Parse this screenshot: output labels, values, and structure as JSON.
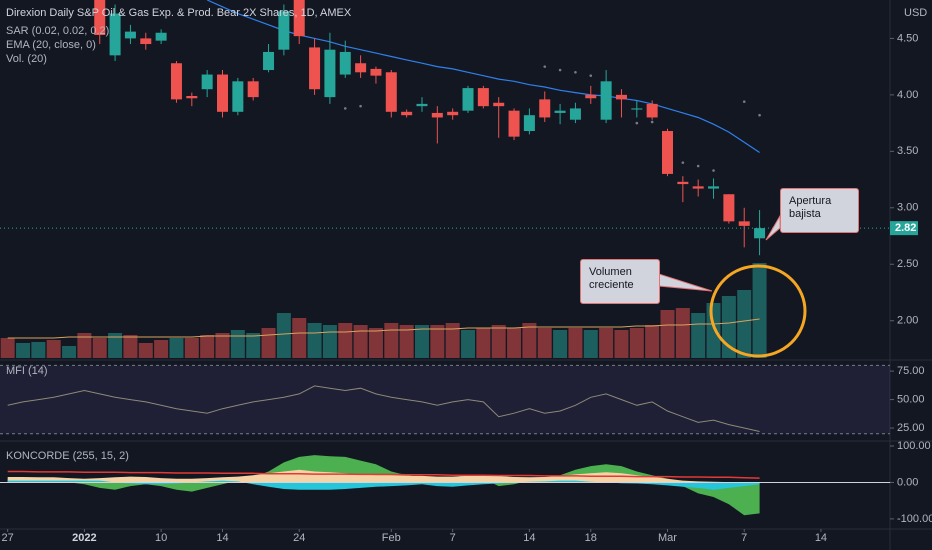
{
  "chart_data": [
    {
      "type": "candlestick",
      "title": "Direxion Daily S&P Oil & Gas Exp. & Prod. Bear 2X Shares, 1D, AMEX",
      "indicators": [
        "SAR (0.02, 0.02, 0.2)",
        "EMA (20, close, 0)",
        "Vol. (20)"
      ],
      "currency": "USD",
      "last_price": 2.82,
      "up_color": "#26a69a",
      "down_color": "#ef5350",
      "xlim": [
        -0.5,
        57.5
      ],
      "xticks": [
        {
          "value": 0,
          "label": "27"
        },
        {
          "value": 5,
          "label": "2022"
        },
        {
          "value": 10,
          "label": "10"
        },
        {
          "value": 14,
          "label": "14"
        },
        {
          "value": 19,
          "label": "24"
        },
        {
          "value": 25,
          "label": "Feb"
        },
        {
          "value": 29,
          "label": "7"
        },
        {
          "value": 34,
          "label": "14"
        },
        {
          "value": 38,
          "label": "18"
        },
        {
          "value": 43,
          "label": "Mar"
        },
        {
          "value": 48,
          "label": "7"
        },
        {
          "value": 53,
          "label": "14"
        }
      ],
      "ylim": [
        1.67,
        4.84
      ],
      "yticks": [
        {
          "value": 2,
          "label": "2.00"
        },
        {
          "value": 2.5,
          "label": "2.50"
        },
        {
          "value": 3,
          "label": "3.00"
        },
        {
          "value": 3.5,
          "label": "3.50"
        },
        {
          "value": 4,
          "label": "4.00"
        },
        {
          "value": 4.5,
          "label": "4.50"
        }
      ],
      "open": [
        null,
        null,
        null,
        null,
        null,
        null,
        4.84,
        4.35,
        4.5,
        4.5,
        4.48,
        4.28,
        3.99,
        4.05,
        4.18,
        3.85,
        4.12,
        4.22,
        4.4,
        4.84,
        4.42,
        3.98,
        4.18,
        4.28,
        4.23,
        4.2,
        3.85,
        3.9,
        3.84,
        3.85,
        3.86,
        4.06,
        3.93,
        3.86,
        3.68,
        3.96,
        3.84,
        3.78,
        4.0,
        3.78,
        4.0,
        3.87,
        3.92,
        3.68,
        3.23,
        3.19,
        3.17,
        3.12,
        2.88,
        2.73
      ],
      "high": [
        null,
        null,
        null,
        null,
        null,
        null,
        4.9,
        4.8,
        4.62,
        4.55,
        4.58,
        4.3,
        4.02,
        4.22,
        4.22,
        4.15,
        4.15,
        4.45,
        4.8,
        4.95,
        4.5,
        4.55,
        4.48,
        4.35,
        4.25,
        4.22,
        3.87,
        3.98,
        3.9,
        3.88,
        4.08,
        4.08,
        3.98,
        3.88,
        3.88,
        4.03,
        3.92,
        3.93,
        4.08,
        4.22,
        4.05,
        3.95,
        3.95,
        3.7,
        3.28,
        3.25,
        3.26,
        3.12,
        3.0,
        2.98
      ],
      "low": [
        null,
        null,
        null,
        null,
        null,
        null,
        4.45,
        4.3,
        4.45,
        4.4,
        4.45,
        3.93,
        3.9,
        3.98,
        3.8,
        3.82,
        3.95,
        4.2,
        4.35,
        4.45,
        4.0,
        3.92,
        4.15,
        4.15,
        4.1,
        3.8,
        3.8,
        3.85,
        3.57,
        3.78,
        3.84,
        3.88,
        3.62,
        3.6,
        3.65,
        3.76,
        3.74,
        3.75,
        3.92,
        3.75,
        3.8,
        3.8,
        3.78,
        3.28,
        3.05,
        3.1,
        3.08,
        2.86,
        2.65,
        2.58
      ],
      "close": [
        null,
        null,
        null,
        null,
        null,
        null,
        4.53,
        4.72,
        4.56,
        4.45,
        4.55,
        3.96,
        3.97,
        4.18,
        3.85,
        4.12,
        3.98,
        4.38,
        4.74,
        4.52,
        4.05,
        4.4,
        4.38,
        4.2,
        4.17,
        3.85,
        3.82,
        3.92,
        3.8,
        3.82,
        4.06,
        3.9,
        3.9,
        3.63,
        3.82,
        3.8,
        3.86,
        3.88,
        3.97,
        4.12,
        3.96,
        3.88,
        3.8,
        3.3,
        3.21,
        3.17,
        3.19,
        2.88,
        2.84,
        2.82
      ],
      "ema": {
        "color": "#2f80ed",
        "values": [
          null,
          null,
          null,
          null,
          null,
          null,
          null,
          null,
          null,
          null,
          null,
          null,
          null,
          4.84,
          4.78,
          4.72,
          4.67,
          4.62,
          4.57,
          4.53,
          4.5,
          4.47,
          4.43,
          4.4,
          4.37,
          4.34,
          4.31,
          4.28,
          4.25,
          4.23,
          4.2,
          4.17,
          4.14,
          4.12,
          4.09,
          4.07,
          4.04,
          4.02,
          4.0,
          3.99,
          3.97,
          3.95,
          3.92,
          3.88,
          3.84,
          3.8,
          3.74,
          3.67,
          3.58,
          3.49
        ]
      },
      "sar": {
        "color": "#787b86",
        "values": [
          null,
          null,
          null,
          null,
          null,
          null,
          null,
          null,
          null,
          null,
          null,
          null,
          null,
          null,
          null,
          null,
          null,
          null,
          null,
          null,
          null,
          null,
          3.88,
          3.9,
          null,
          null,
          null,
          null,
          null,
          null,
          null,
          null,
          null,
          null,
          null,
          4.25,
          4.22,
          4.2,
          4.17,
          null,
          null,
          3.75,
          3.76,
          null,
          3.4,
          3.37,
          3.33,
          null,
          3.94,
          3.82
        ]
      },
      "volume": {
        "ylim": [
          0,
          100
        ],
        "colors": [
          "#813539",
          "#1d5e5e",
          "#1d5e5e",
          "#813539",
          "#1d5e5e",
          "#813539",
          "#813539",
          "#1d5e5e",
          "#813539",
          "#813539",
          "#813539",
          "#1d5e5e",
          "#813539",
          "#813539",
          "#813539",
          "#1d5e5e",
          "#1d5e5e",
          "#813539",
          "#1d5e5e",
          "#813539",
          "#1d5e5e",
          "#1d5e5e",
          "#813539",
          "#813539",
          "#813539",
          "#813539",
          "#813539",
          "#1d5e5e",
          "#813539",
          "#813539",
          "#1d5e5e",
          "#813539",
          "#813539",
          "#813539",
          "#813539",
          "#813539",
          "#1d5e5e",
          "#813539",
          "#1d5e5e",
          "#813539",
          "#813539",
          "#813539",
          "#813539",
          "#813539",
          "#813539",
          "#1d5e5e",
          "#1d5e5e",
          "#1d5e5e",
          "#1d5e5e",
          "#1d5e5e"
        ],
        "values": [
          20,
          15,
          16,
          18,
          12,
          25,
          20,
          25,
          23,
          15,
          18,
          20,
          20,
          23,
          25,
          28,
          25,
          30,
          45,
          40,
          35,
          33,
          35,
          33,
          30,
          35,
          33,
          33,
          33,
          35,
          28,
          30,
          33,
          30,
          35,
          30,
          28,
          30,
          28,
          30,
          28,
          30,
          33,
          48,
          50,
          45,
          55,
          62,
          68,
          95
        ],
        "ma": {
          "color": "#d9a35f",
          "values": [
            20,
            20,
            20,
            20,
            21,
            21,
            21,
            21,
            21,
            21,
            21,
            21,
            21,
            22,
            22,
            22,
            22,
            23,
            24,
            25,
            25,
            26,
            26,
            27,
            27,
            28,
            28,
            29,
            29,
            29,
            30,
            30,
            30,
            30,
            31,
            31,
            31,
            31,
            31,
            31,
            31,
            32,
            32,
            33,
            33,
            34,
            34,
            35,
            37,
            39
          ]
        }
      },
      "annotations": [
        {
          "text": "Apertura bajista"
        },
        {
          "text": "Volumen creciente"
        }
      ]
    },
    {
      "type": "line",
      "title": "MFI (14)",
      "color": "#8c8a78",
      "band": [
        20,
        80
      ],
      "ylim": [
        14.5,
        83
      ],
      "yticks": [
        {
          "value": 25,
          "label": "25.00"
        },
        {
          "value": 50,
          "label": "50.00"
        },
        {
          "value": 75,
          "label": "75.00"
        }
      ],
      "values": [
        45,
        48,
        50,
        52,
        55,
        58,
        55,
        52,
        50,
        48,
        45,
        42,
        40,
        38,
        42,
        45,
        48,
        50,
        52,
        55,
        62,
        60,
        58,
        60,
        55,
        52,
        50,
        48,
        45,
        48,
        50,
        48,
        35,
        38,
        42,
        38,
        40,
        45,
        52,
        55,
        50,
        45,
        48,
        40,
        35,
        30,
        32,
        28,
        25,
        22
      ]
    },
    {
      "type": "area",
      "title": "KONCORDE (255, 15, 2)",
      "ylim": [
        -125,
        111
      ],
      "yticks": [
        {
          "value": -100,
          "label": "-100.00"
        },
        {
          "value": 0,
          "label": "0.00"
        },
        {
          "value": 100,
          "label": "100.00"
        }
      ],
      "series": [
        {
          "color": "#4caf50",
          "values": [
            10,
            10,
            8,
            5,
            0,
            -5,
            -15,
            -20,
            -10,
            -5,
            -10,
            -20,
            -25,
            -15,
            -5,
            5,
            15,
            30,
            55,
            70,
            75,
            72,
            70,
            60,
            50,
            30,
            20,
            15,
            10,
            15,
            20,
            10,
            -10,
            -5,
            5,
            10,
            20,
            35,
            45,
            50,
            45,
            30,
            20,
            10,
            -10,
            -30,
            -40,
            -60,
            -90,
            -85
          ]
        },
        {
          "color": "#f5d3a6",
          "values": [
            15,
            15,
            14,
            14,
            12,
            10,
            12,
            14,
            16,
            15,
            12,
            10,
            10,
            12,
            14,
            16,
            20,
            25,
            30,
            35,
            30,
            28,
            25,
            22,
            20,
            20,
            18,
            18,
            16,
            16,
            18,
            20,
            18,
            15,
            14,
            15,
            18,
            22,
            25,
            28,
            25,
            20,
            15,
            10,
            5,
            3,
            2,
            1,
            0,
            0
          ]
        },
        {
          "color": "#26c6da",
          "values": [
            5,
            5,
            5,
            5,
            5,
            5,
            5,
            0,
            -3,
            -5,
            -5,
            -3,
            0,
            3,
            5,
            3,
            -5,
            -12,
            -18,
            -20,
            -20,
            -20,
            -18,
            -15,
            -12,
            -10,
            -8,
            -5,
            -10,
            -12,
            -8,
            -5,
            -3,
            0,
            2,
            3,
            5,
            5,
            2,
            0,
            -2,
            -3,
            -5,
            -8,
            -12,
            -15,
            -20,
            -15,
            -10,
            -5
          ]
        },
        {
          "type": "line",
          "color": "#e53935",
          "values": [
            30,
            30,
            29,
            29,
            29,
            28,
            28,
            28,
            27,
            27,
            27,
            26,
            26,
            26,
            25,
            25,
            25,
            24,
            24,
            24,
            23,
            23,
            23,
            22,
            22,
            22,
            21,
            21,
            21,
            20,
            20,
            20,
            19,
            19,
            19,
            18,
            18,
            18,
            17,
            17,
            17,
            16,
            16,
            16,
            15,
            15,
            14,
            14,
            13,
            12
          ]
        }
      ]
    }
  ]
}
